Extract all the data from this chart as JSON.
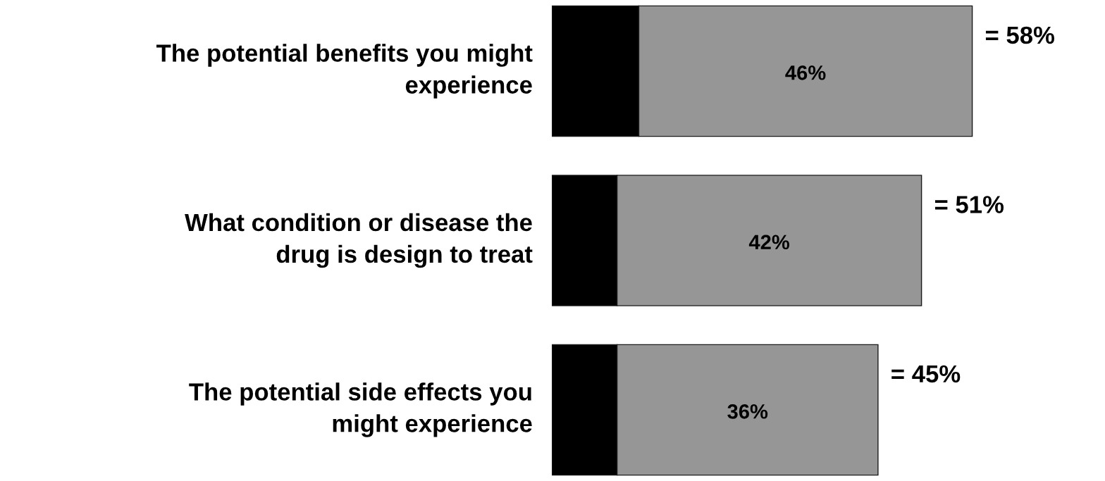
{
  "chart_data": {
    "type": "bar",
    "orientation": "horizontal",
    "stacked": true,
    "categories": [
      "The potential benefits you might\nexperience",
      "What condition or disease the\ndrug is design to treat",
      "The potential side effects you\nmight experience"
    ],
    "series": [
      {
        "color": "#000000",
        "values": [
          12,
          9,
          9
        ],
        "value_labels": [
          null,
          null,
          null
        ]
      },
      {
        "color": "#969696",
        "values": [
          46,
          42,
          36
        ],
        "value_labels": [
          "46%",
          "42%",
          "36%"
        ]
      }
    ],
    "totals": [
      "= 58%",
      "= 51%",
      "= 45%"
    ],
    "legend": false
  }
}
